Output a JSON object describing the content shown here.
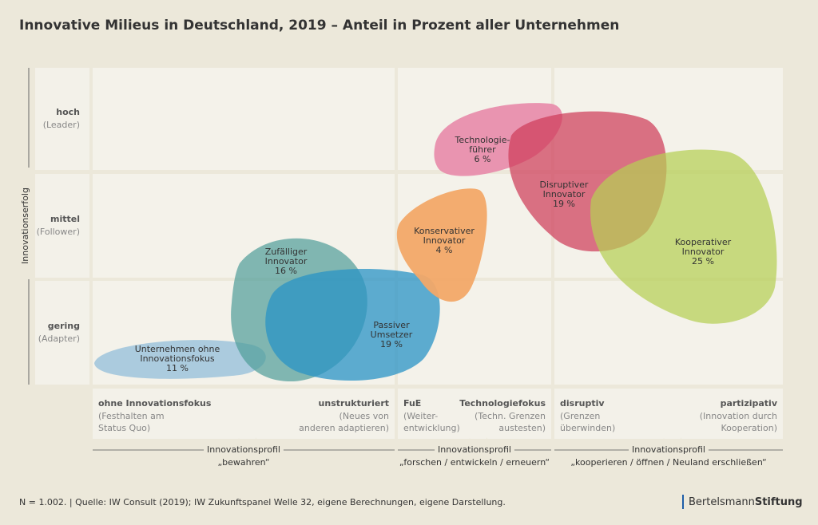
{
  "title": "Innovative Milieus in Deutschland, 2019 – Anteil in Prozent aller Unternehmen",
  "y_axis_title": "Innovationserfolg",
  "rows": [
    {
      "label": "hoch",
      "sub": "(Leader)"
    },
    {
      "label": "mittel",
      "sub": "(Follower)"
    },
    {
      "label": "gering",
      "sub": "(Adapter)"
    }
  ],
  "columns": [
    {
      "left": {
        "title": "ohne Innovationsfokus",
        "lines": [
          "(Festhalten am",
          "Status Quo)"
        ]
      },
      "right": {
        "title": "unstrukturiert",
        "lines": [
          "(Neues von",
          "anderen adaptieren)"
        ]
      },
      "group": "Innovationsprofil",
      "group_sub": "„bewahren“"
    },
    {
      "left": {
        "title": "FuE",
        "lines": [
          "(Weiter-",
          "entwicklung)"
        ]
      },
      "right": {
        "title": "Technologiefokus",
        "lines": [
          "(Techn. Grenzen",
          "austesten)"
        ]
      },
      "group": "Innovationsprofil",
      "group_sub": "„forschen / entwickeln / erneuern“"
    },
    {
      "left": {
        "title": "disruptiv",
        "lines": [
          "(Grenzen",
          "überwinden)"
        ]
      },
      "right": {
        "title": "partizipativ",
        "lines": [
          "(Innovation durch",
          "Kooperation)"
        ]
      },
      "group": "Innovationsprofil",
      "group_sub": "„kooperieren / öffnen / Neuland erschließen“"
    }
  ],
  "milieus": [
    {
      "lines": [
        "Unternehmen ohne",
        "Innovationsfokus"
      ],
      "share": "11 %"
    },
    {
      "lines": [
        "Zufälliger",
        "Innovator"
      ],
      "share": "16 %"
    },
    {
      "lines": [
        "Passiver",
        "Umsetzer"
      ],
      "share": "19 %"
    },
    {
      "lines": [
        "Konservativer",
        "Innovator"
      ],
      "share": "4 %"
    },
    {
      "lines": [
        "Technologie-",
        "führer"
      ],
      "share": "6 %"
    },
    {
      "lines": [
        "Disruptiver",
        "Innovator"
      ],
      "share": "19 %"
    },
    {
      "lines": [
        "Kooperativer",
        "Innovator"
      ],
      "share": "25 %"
    }
  ],
  "footer": "N = 1.002.  |  Quelle: IW Consult (2019); IW Zukunftspanel Welle 32, eigene Berechnungen, eigene Darstellung.",
  "logo": {
    "part1": "Bertelsmann",
    "part2": "Stiftung"
  }
}
